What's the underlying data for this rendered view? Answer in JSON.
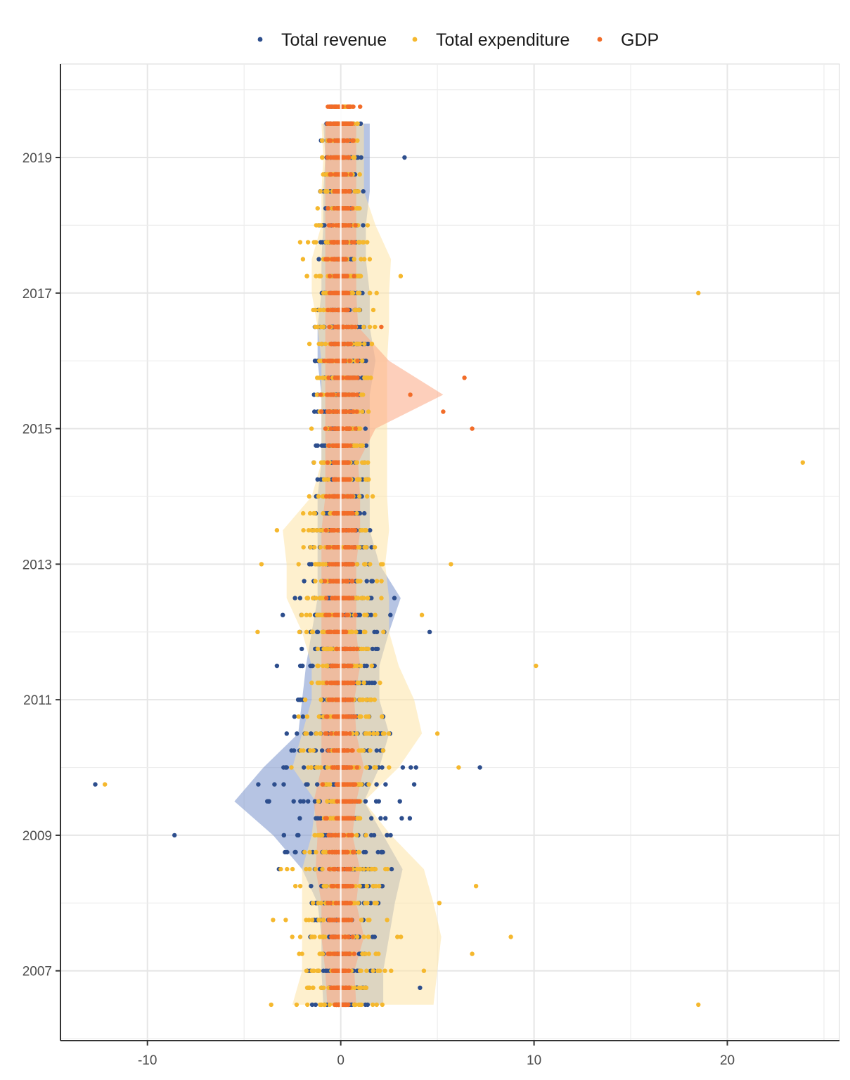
{
  "chart_data": {
    "type": "scatter",
    "description": "Jittered yearly points with shaded ribbons per series (horizontal values, time on vertical axis)",
    "title": "",
    "xlabel": "",
    "ylabel": "",
    "xlim": [
      -14.5,
      25.8
    ],
    "ylim": [
      2005.97,
      2020.38
    ],
    "x_ticks": [
      -10,
      0,
      10,
      20
    ],
    "x_tick_labels": [
      "-10",
      "0",
      "10",
      "20"
    ],
    "y_ticks": [
      2007,
      2009,
      2011,
      2013,
      2015,
      2017,
      2019
    ],
    "y_tick_labels": [
      "2007",
      "2009",
      "2011",
      "2013",
      "2015",
      "2017",
      "2019"
    ],
    "grid": true,
    "legend_position": "top",
    "time_steps": [
      2006.5,
      2006.75,
      2007.0,
      2007.25,
      2007.5,
      2007.75,
      2008.0,
      2008.25,
      2008.5,
      2008.75,
      2009.0,
      2009.25,
      2009.5,
      2009.75,
      2010.0,
      2010.25,
      2010.5,
      2010.75,
      2011.0,
      2011.25,
      2011.5,
      2011.75,
      2012.0,
      2012.25,
      2012.5,
      2012.75,
      2013.0,
      2013.25,
      2013.5,
      2013.75,
      2014.0,
      2014.25,
      2014.5,
      2014.75,
      2015.0,
      2015.25,
      2015.5,
      2015.75,
      2016.0,
      2016.25,
      2016.5,
      2016.75,
      2017.0,
      2017.25,
      2017.5,
      2017.75,
      2018.0,
      2018.25,
      2018.5,
      2018.75,
      2019.0,
      2019.25,
      2019.5,
      2019.75
    ],
    "series": [
      {
        "name": "Total revenue",
        "color": "#2d4e8d",
        "fill": "#7a93cc",
        "ribbon": {
          "points": [
            {
              "y": 2006.5,
              "lo": -0.9,
              "hi": 2.2
            },
            {
              "y": 2007.0,
              "lo": -1.0,
              "hi": 2.2
            },
            {
              "y": 2007.5,
              "lo": -1.0,
              "hi": 2.5
            },
            {
              "y": 2008.0,
              "lo": -1.2,
              "hi": 2.8
            },
            {
              "y": 2008.5,
              "lo": -2.0,
              "hi": 3.2
            },
            {
              "y": 2009.0,
              "lo": -3.5,
              "hi": 2.2
            },
            {
              "y": 2009.5,
              "lo": -5.5,
              "hi": 1.2
            },
            {
              "y": 2010.0,
              "lo": -4.0,
              "hi": 2.0
            },
            {
              "y": 2010.5,
              "lo": -2.2,
              "hi": 2.5
            },
            {
              "y": 2011.0,
              "lo": -2.0,
              "hi": 2.0
            },
            {
              "y": 2011.5,
              "lo": -1.8,
              "hi": 2.0
            },
            {
              "y": 2012.0,
              "lo": -1.5,
              "hi": 2.5
            },
            {
              "y": 2012.5,
              "lo": -1.2,
              "hi": 3.1
            },
            {
              "y": 2013.0,
              "lo": -1.2,
              "hi": 2.0
            },
            {
              "y": 2013.5,
              "lo": -1.2,
              "hi": 1.5
            },
            {
              "y": 2014.0,
              "lo": -1.2,
              "hi": 1.5
            },
            {
              "y": 2014.5,
              "lo": -1.0,
              "hi": 1.5
            },
            {
              "y": 2015.0,
              "lo": -1.0,
              "hi": 1.5
            },
            {
              "y": 2015.5,
              "lo": -1.0,
              "hi": 1.5
            },
            {
              "y": 2016.0,
              "lo": -1.2,
              "hi": 1.8
            },
            {
              "y": 2016.5,
              "lo": -1.2,
              "hi": 1.5
            },
            {
              "y": 2017.0,
              "lo": -1.0,
              "hi": 1.5
            },
            {
              "y": 2017.5,
              "lo": -1.0,
              "hi": 1.3
            },
            {
              "y": 2018.0,
              "lo": -0.9,
              "hi": 1.3
            },
            {
              "y": 2018.5,
              "lo": -0.9,
              "hi": 1.5
            },
            {
              "y": 2019.0,
              "lo": -0.8,
              "hi": 1.5
            },
            {
              "y": 2019.5,
              "lo": -0.9,
              "hi": 1.5
            }
          ]
        },
        "band_half_width": [
          1.8,
          1.6,
          1.8,
          1.5,
          1.8,
          1.9,
          2.2,
          2.6,
          3.2,
          3.6,
          3.8,
          4.2,
          5.0,
          4.4,
          3.9,
          3.2,
          2.8,
          2.6,
          2.3,
          2.2,
          2.1,
          2.1,
          2.3,
          2.6,
          2.8,
          2.2,
          1.9,
          1.8,
          1.7,
          1.6,
          1.6,
          1.5,
          1.5,
          1.4,
          1.4,
          1.4,
          1.4,
          1.5,
          1.6,
          1.5,
          1.4,
          1.4,
          1.4,
          1.3,
          1.3,
          1.2,
          1.2,
          1.1,
          1.2,
          1.2,
          1.3,
          1.2,
          1.1,
          0.6
        ],
        "outliers": [
          {
            "x": -12.7,
            "y": 2009.75
          },
          {
            "x": -8.6,
            "y": 2009.0
          },
          {
            "x": -3.8,
            "y": 2009.5
          },
          {
            "x": 7.2,
            "y": 2010.0
          },
          {
            "x": 4.6,
            "y": 2012.0
          },
          {
            "x": 3.3,
            "y": 2019.0
          },
          {
            "x": 4.1,
            "y": 2006.75
          },
          {
            "x": -3.0,
            "y": 2012.25
          },
          {
            "x": -3.3,
            "y": 2011.5
          }
        ]
      },
      {
        "name": "Total expenditure",
        "color": "#f5b82e",
        "fill": "#fde4a6",
        "ribbon": {
          "points": [
            {
              "y": 2006.5,
              "lo": -2.5,
              "hi": 4.8
            },
            {
              "y": 2007.0,
              "lo": -2.0,
              "hi": 5.0
            },
            {
              "y": 2007.5,
              "lo": -2.0,
              "hi": 5.2
            },
            {
              "y": 2008.0,
              "lo": -2.0,
              "hi": 4.8
            },
            {
              "y": 2008.5,
              "lo": -2.0,
              "hi": 4.3
            },
            {
              "y": 2009.0,
              "lo": -1.5,
              "hi": 2.6
            },
            {
              "y": 2009.5,
              "lo": -1.3,
              "hi": 1.2
            },
            {
              "y": 2010.0,
              "lo": -2.5,
              "hi": 3.0
            },
            {
              "y": 2010.5,
              "lo": -2.0,
              "hi": 4.2
            },
            {
              "y": 2011.0,
              "lo": -1.5,
              "hi": 3.8
            },
            {
              "y": 2011.5,
              "lo": -1.5,
              "hi": 3.0
            },
            {
              "y": 2012.0,
              "lo": -2.0,
              "hi": 2.5
            },
            {
              "y": 2012.5,
              "lo": -2.8,
              "hi": 2.5
            },
            {
              "y": 2013.0,
              "lo": -2.8,
              "hi": 2.3
            },
            {
              "y": 2013.5,
              "lo": -3.0,
              "hi": 2.5
            },
            {
              "y": 2014.0,
              "lo": -1.5,
              "hi": 2.4
            },
            {
              "y": 2014.5,
              "lo": -1.0,
              "hi": 2.4
            },
            {
              "y": 2015.0,
              "lo": -1.0,
              "hi": 2.4
            },
            {
              "y": 2015.5,
              "lo": -1.0,
              "hi": 2.4
            },
            {
              "y": 2016.0,
              "lo": -1.0,
              "hi": 2.4
            },
            {
              "y": 2016.5,
              "lo": -1.2,
              "hi": 2.5
            },
            {
              "y": 2017.0,
              "lo": -1.5,
              "hi": 2.5
            },
            {
              "y": 2017.5,
              "lo": -1.5,
              "hi": 2.6
            },
            {
              "y": 2018.0,
              "lo": -1.0,
              "hi": 1.8
            },
            {
              "y": 2018.5,
              "lo": -1.0,
              "hi": 1.2
            },
            {
              "y": 2019.0,
              "lo": -0.9,
              "hi": 1.2
            },
            {
              "y": 2019.5,
              "lo": -1.0,
              "hi": 1.2
            }
          ]
        },
        "band_half_width": [
          3.0,
          2.8,
          3.0,
          2.8,
          3.3,
          3.0,
          2.9,
          2.6,
          2.8,
          2.1,
          1.6,
          1.4,
          1.3,
          2.0,
          2.6,
          2.9,
          3.0,
          2.8,
          2.5,
          2.3,
          2.2,
          2.2,
          2.3,
          2.5,
          2.6,
          2.5,
          2.4,
          2.5,
          2.6,
          2.2,
          1.8,
          1.6,
          1.6,
          1.6,
          1.6,
          1.6,
          1.6,
          1.6,
          1.7,
          1.8,
          1.8,
          1.9,
          1.9,
          2.0,
          2.0,
          1.8,
          1.5,
          1.2,
          1.1,
          1.0,
          1.0,
          1.0,
          1.0,
          0.6
        ],
        "outliers": [
          {
            "x": -12.2,
            "y": 2009.75
          },
          {
            "x": 18.5,
            "y": 2006.5
          },
          {
            "x": 18.5,
            "y": 2017.0
          },
          {
            "x": 23.9,
            "y": 2014.5
          },
          {
            "x": 10.1,
            "y": 2011.5
          },
          {
            "x": 8.8,
            "y": 2007.5
          },
          {
            "x": 6.8,
            "y": 2007.25
          },
          {
            "x": 7.0,
            "y": 2008.25
          },
          {
            "x": 5.7,
            "y": 2013.0
          },
          {
            "x": 6.1,
            "y": 2010.0
          },
          {
            "x": 5.0,
            "y": 2010.5
          },
          {
            "x": 5.1,
            "y": 2008.0
          },
          {
            "x": -4.3,
            "y": 2012.0
          },
          {
            "x": -4.1,
            "y": 2013.0
          },
          {
            "x": -3.3,
            "y": 2013.5
          },
          {
            "x": -3.6,
            "y": 2006.5
          },
          {
            "x": -3.5,
            "y": 2007.75
          },
          {
            "x": -3.1,
            "y": 2008.5
          },
          {
            "x": -2.1,
            "y": 2017.75
          },
          {
            "x": 3.1,
            "y": 2017.25
          },
          {
            "x": 4.2,
            "y": 2012.25
          },
          {
            "x": 4.3,
            "y": 2007.0
          }
        ]
      },
      {
        "name": "GDP",
        "color": "#f26c28",
        "fill": "#fca784",
        "ribbon": {
          "points": [
            {
              "y": 2006.5,
              "lo": -0.7,
              "hi": 0.8
            },
            {
              "y": 2007.0,
              "lo": -0.8,
              "hi": 0.7
            },
            {
              "y": 2007.5,
              "lo": -1.0,
              "hi": 1.2
            },
            {
              "y": 2008.0,
              "lo": -1.0,
              "hi": 0.8
            },
            {
              "y": 2008.5,
              "lo": -1.3,
              "hi": 1.0
            },
            {
              "y": 2009.0,
              "lo": -1.2,
              "hi": 0.6
            },
            {
              "y": 2009.5,
              "lo": -1.4,
              "hi": 0.8
            },
            {
              "y": 2010.0,
              "lo": -1.0,
              "hi": 1.2
            },
            {
              "y": 2010.5,
              "lo": -1.0,
              "hi": 0.8
            },
            {
              "y": 2011.0,
              "lo": -1.0,
              "hi": 0.7
            },
            {
              "y": 2011.5,
              "lo": -1.0,
              "hi": 1.0
            },
            {
              "y": 2012.0,
              "lo": -1.0,
              "hi": 0.8
            },
            {
              "y": 2012.5,
              "lo": -1.0,
              "hi": 0.8
            },
            {
              "y": 2013.0,
              "lo": -1.0,
              "hi": 0.8
            },
            {
              "y": 2013.5,
              "lo": -1.0,
              "hi": 1.0
            },
            {
              "y": 2014.0,
              "lo": -0.8,
              "hi": 1.0
            },
            {
              "y": 2014.5,
              "lo": -0.8,
              "hi": 0.9
            },
            {
              "y": 2015.0,
              "lo": -0.8,
              "hi": 1.8
            },
            {
              "y": 2015.5,
              "lo": -0.8,
              "hi": 5.3
            },
            {
              "y": 2016.0,
              "lo": -0.8,
              "hi": 2.5
            },
            {
              "y": 2016.5,
              "lo": -0.8,
              "hi": 0.9
            },
            {
              "y": 2017.0,
              "lo": -0.8,
              "hi": 0.8
            },
            {
              "y": 2017.5,
              "lo": -0.8,
              "hi": 0.8
            },
            {
              "y": 2018.0,
              "lo": -0.8,
              "hi": 0.8
            },
            {
              "y": 2018.5,
              "lo": -0.8,
              "hi": 0.8
            },
            {
              "y": 2019.0,
              "lo": -0.8,
              "hi": 0.8
            },
            {
              "y": 2019.5,
              "lo": -0.8,
              "hi": 0.8
            }
          ]
        },
        "band_half_width": [
          0.5,
          0.6,
          0.6,
          0.7,
          0.8,
          0.9,
          0.8,
          0.9,
          1.0,
          0.9,
          0.8,
          0.8,
          1.0,
          1.0,
          0.9,
          0.8,
          0.8,
          0.8,
          0.8,
          0.8,
          0.8,
          0.9,
          0.8,
          0.8,
          0.9,
          0.9,
          0.8,
          0.9,
          0.9,
          0.8,
          0.8,
          0.8,
          0.8,
          0.8,
          1.0,
          1.1,
          1.3,
          1.1,
          0.9,
          0.8,
          0.8,
          0.8,
          0.8,
          0.8,
          0.8,
          0.8,
          0.8,
          0.8,
          0.8,
          0.8,
          0.8,
          0.8,
          0.9,
          0.7
        ],
        "outliers": [
          {
            "x": 6.4,
            "y": 2015.75
          },
          {
            "x": 3.6,
            "y": 2015.5
          },
          {
            "x": 5.3,
            "y": 2015.25
          },
          {
            "x": 6.8,
            "y": 2015.0
          },
          {
            "x": 1.0,
            "y": 2019.75
          },
          {
            "x": 2.1,
            "y": 2016.5
          }
        ]
      }
    ]
  }
}
